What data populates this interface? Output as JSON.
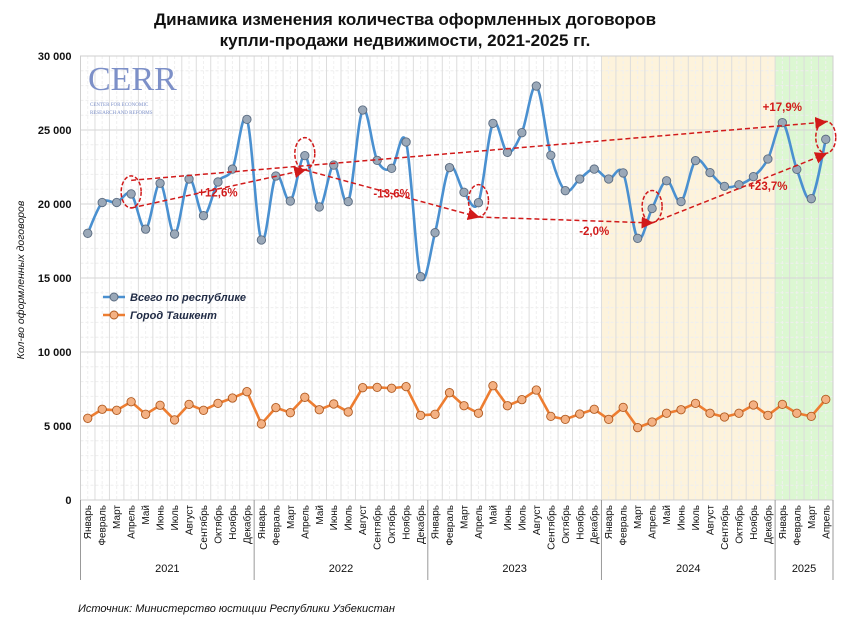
{
  "chart_data": {
    "type": "line",
    "title": [
      "Динамика изменения количества оформленных договоров",
      "купли-продажи недвижимости, 2021-2025 гг."
    ],
    "ylabel": "Кол-во оформленных договоров",
    "xlabel": "",
    "ylim": [
      0,
      30000
    ],
    "yticks": [
      0,
      5000,
      10000,
      15000,
      20000,
      25000,
      30000
    ],
    "ytick_labels": [
      "0",
      "5 000",
      "10 000",
      "15 000",
      "20 000",
      "25 000",
      "30 000"
    ],
    "grid": true,
    "legend_position": "middle-left",
    "months": [
      "Январь",
      "Февраль",
      "Март",
      "Апрель",
      "Май",
      "Июнь",
      "Июль",
      "Август",
      "Сентябрь",
      "Октябрь",
      "Ноябрь",
      "Декабрь"
    ],
    "years": [
      {
        "label": "2021",
        "months": 12
      },
      {
        "label": "2022",
        "months": 12
      },
      {
        "label": "2023",
        "months": 12
      },
      {
        "label": "2024",
        "months": 12,
        "highlight": "#fdf3dc"
      },
      {
        "label": "2025",
        "months": 4,
        "highlight": "#dcf7d2"
      }
    ],
    "series": [
      {
        "name": "Всего по республике",
        "color": "#4a90d0",
        "marker": "#9aa8b8",
        "smooth": true,
        "values": [
          18020,
          20100,
          20100,
          20680,
          18300,
          21400,
          17970,
          21690,
          19210,
          21490,
          22360,
          25720,
          17570,
          21890,
          20200,
          23270,
          19800,
          22630,
          20160,
          26350,
          22950,
          22410,
          24190,
          15090,
          18060,
          22460,
          20790,
          20090,
          25450,
          23490,
          24820,
          27970,
          23290,
          20900,
          21690,
          22360,
          21690,
          22100,
          17680,
          19700,
          21570,
          20160,
          22930,
          22120,
          21190,
          21300,
          21850,
          23040,
          25500,
          22340,
          20360,
          24370
        ]
      },
      {
        "name": "Город Ташкент",
        "color": "#ed7d31",
        "marker": "#f4b183",
        "smooth": false,
        "values": [
          5520,
          6130,
          6060,
          6640,
          5790,
          6400,
          5410,
          6460,
          6060,
          6530,
          6890,
          7320,
          5140,
          6240,
          5900,
          6940,
          6100,
          6490,
          5950,
          7590,
          7610,
          7550,
          7660,
          5720,
          5790,
          7250,
          6370,
          5860,
          7720,
          6370,
          6780,
          7430,
          5650,
          5450,
          5810,
          6130,
          5450,
          6260,
          4890,
          5270,
          5860,
          6100,
          6530,
          5860,
          5610,
          5860,
          6420,
          5720,
          6460,
          5860,
          5650,
          6800
        ]
      }
    ],
    "annotations": {
      "color": "#d11a1a",
      "trend_arrows": [
        {
          "from": [
            3,
            21600
          ],
          "to": [
            51,
            25540
          ],
          "label": "+17,9%",
          "label_at": [
            48,
            26300
          ]
        },
        {
          "from": [
            3,
            19730
          ],
          "to": [
            15,
            22300
          ],
          "label": "+12,6%",
          "label_at": [
            9,
            20500
          ]
        },
        {
          "from": [
            15,
            22300
          ],
          "to": [
            27,
            19120
          ],
          "label": "-13,6%",
          "label_at": [
            21,
            20450
          ]
        },
        {
          "from": [
            27,
            19120
          ],
          "to": [
            39,
            18720
          ],
          "label": "-2,0%",
          "label_at": [
            35,
            17900
          ]
        },
        {
          "from": [
            39,
            18720
          ],
          "to": [
            51,
            23380
          ],
          "label": "+23,7%",
          "label_at": [
            47,
            20950
          ]
        }
      ],
      "circled_points": [
        3,
        15,
        27,
        39,
        51
      ]
    }
  },
  "logo": {
    "text": "CERR",
    "subtitle": [
      "CENTER FOR ECONOMIC",
      "RESEARCH AND REFORMS"
    ]
  },
  "source": "Источник: Министерство юстиции Республики Узбекистан"
}
